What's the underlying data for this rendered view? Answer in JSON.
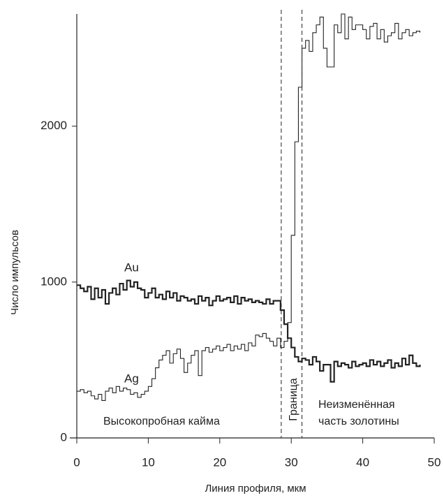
{
  "chart_data": {
    "type": "step",
    "xlabel": "Линия профиля, мкм",
    "ylabel": "Число импульсов",
    "x": [
      0,
      0.5,
      1,
      1.5,
      2,
      2.5,
      3,
      3.5,
      4,
      4.5,
      5,
      5.5,
      6,
      6.5,
      7,
      7.5,
      8,
      8.5,
      9,
      9.5,
      10,
      10.5,
      11,
      11.5,
      12,
      12.5,
      13,
      13.5,
      14,
      14.5,
      15,
      15.5,
      16,
      16.5,
      17,
      17.5,
      18,
      18.5,
      19,
      19.5,
      20,
      20.5,
      21,
      21.5,
      22,
      22.5,
      23,
      23.5,
      24,
      24.5,
      25,
      25.5,
      26,
      26.5,
      27,
      27.5,
      28,
      28.5,
      29,
      29.5,
      30,
      30.5,
      31,
      31.5,
      32,
      32.5,
      33,
      33.5,
      34,
      34.5,
      35,
      35.5,
      36,
      36.5,
      37,
      37.5,
      38,
      38.5,
      39,
      39.5,
      40,
      40.5,
      41,
      41.5,
      42,
      42.5,
      43,
      43.5,
      44,
      44.5,
      45,
      45.5,
      46,
      46.5,
      47,
      47.5,
      48
    ],
    "series": [
      {
        "name": "Au",
        "color": "#222222",
        "width": 2.2,
        "values": [
          980,
          960,
          940,
          970,
          890,
          960,
          900,
          950,
          860,
          930,
          960,
          920,
          990,
          950,
          1010,
          970,
          1000,
          960,
          950,
          900,
          930,
          960,
          900,
          920,
          890,
          940,
          900,
          930,
          880,
          910,
          900,
          880,
          890,
          860,
          910,
          880,
          900,
          850,
          880,
          910,
          880,
          890,
          900,
          870,
          910,
          860,
          900,
          880,
          890,
          870,
          880,
          870,
          860,
          890,
          860,
          880,
          880,
          820,
          730,
          640,
          580,
          520,
          490,
          510,
          500,
          470,
          520,
          490,
          430,
          470,
          470,
          360,
          490,
          460,
          480,
          470,
          450,
          490,
          460,
          470,
          480,
          460,
          500,
          470,
          490,
          460,
          480,
          500,
          450,
          480,
          460,
          510,
          470,
          530,
          480,
          460,
          470
        ]
      },
      {
        "name": "Ag",
        "color": "#222222",
        "width": 1.1,
        "values": [
          300,
          310,
          290,
          300,
          270,
          250,
          280,
          240,
          300,
          320,
          290,
          330,
          300,
          320,
          310,
          280,
          290,
          260,
          280,
          300,
          330,
          380,
          450,
          500,
          530,
          560,
          480,
          540,
          570,
          510,
          420,
          480,
          530,
          560,
          400,
          560,
          580,
          550,
          570,
          590,
          560,
          580,
          600,
          560,
          590,
          570,
          600,
          560,
          610,
          590,
          660,
          650,
          670,
          640,
          620,
          590,
          640,
          580,
          620,
          740,
          1300,
          1900,
          2250,
          2500,
          2550,
          2480,
          2600,
          2650,
          2700,
          2500,
          2380,
          2380,
          2650,
          2600,
          2720,
          2560,
          2700,
          2620,
          2650,
          2650,
          2620,
          2560,
          2640,
          2660,
          2560,
          2620,
          2540,
          2580,
          2600,
          2660,
          2560,
          2600,
          2620,
          2580,
          2600,
          2610,
          2600
        ]
      }
    ],
    "boundary_lines": [
      28.6,
      31.5
    ],
    "xlim": [
      0,
      50
    ],
    "xticks": [
      0,
      10,
      20,
      30,
      40,
      50
    ],
    "ylim": [
      0,
      2720
    ],
    "yticks": [
      0,
      1000,
      2000
    ],
    "annotations": {
      "au": "Au",
      "ag": "Ag",
      "rim": "Высокопробная кайма",
      "boundary": "Граница",
      "unaltered_1": "Неизменённая",
      "unaltered_2": "часть золотины"
    }
  }
}
